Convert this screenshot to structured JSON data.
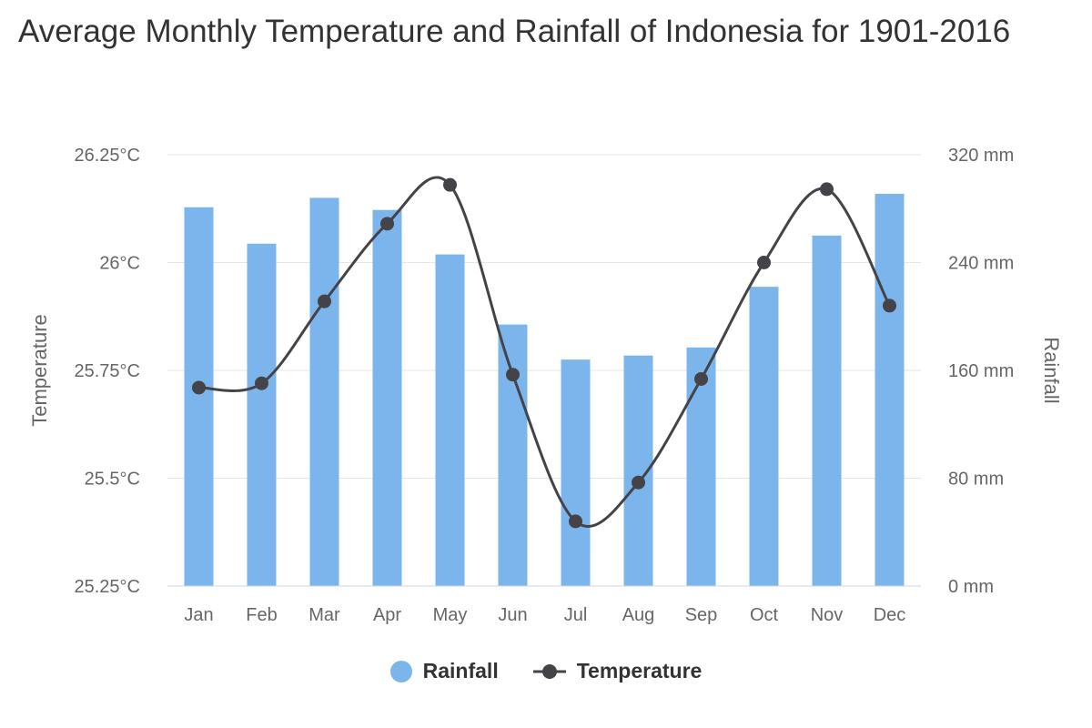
{
  "title": "Average Monthly Temperature and Rainfall of Indonesia for 1901-2016",
  "colors": {
    "rainfall": "#7cb5ec",
    "temperature": "#434348",
    "grid": "#e6e6e6",
    "axis": "#ccd6eb"
  },
  "chart_data": {
    "type": "bar",
    "title": "Average Monthly Temperature and Rainfall of Indonesia for 1901-2016",
    "categories": [
      "Jan",
      "Feb",
      "Mar",
      "Apr",
      "May",
      "Jun",
      "Jul",
      "Aug",
      "Sep",
      "Oct",
      "Nov",
      "Dec"
    ],
    "series": [
      {
        "name": "Rainfall",
        "type": "bar",
        "axis": "right",
        "unit": "mm",
        "values": [
          281,
          254,
          288,
          279,
          246,
          194,
          168,
          171,
          177,
          222,
          260,
          291
        ]
      },
      {
        "name": "Temperature",
        "type": "line",
        "axis": "left",
        "unit": "°C",
        "values": [
          25.71,
          25.72,
          25.91,
          26.09,
          26.18,
          25.74,
          25.4,
          25.49,
          25.73,
          26.0,
          26.17,
          25.9
        ]
      }
    ],
    "y_left": {
      "label": "Temperature",
      "min": 25.25,
      "max": 26.25,
      "ticks": [
        "25.25°C",
        "25.5°C",
        "25.75°C",
        "26°C",
        "26.25°C"
      ],
      "tick_values": [
        25.25,
        25.5,
        25.75,
        26.0,
        26.25
      ]
    },
    "y_right": {
      "label": "Rainfall",
      "min": 0,
      "max": 320,
      "ticks": [
        "0 mm",
        "80 mm",
        "160 mm",
        "240 mm",
        "320 mm"
      ],
      "tick_values": [
        0,
        80,
        160,
        240,
        320
      ]
    },
    "legend": {
      "position": "bottom",
      "items": [
        "Rainfall",
        "Temperature"
      ]
    },
    "grid": true
  }
}
